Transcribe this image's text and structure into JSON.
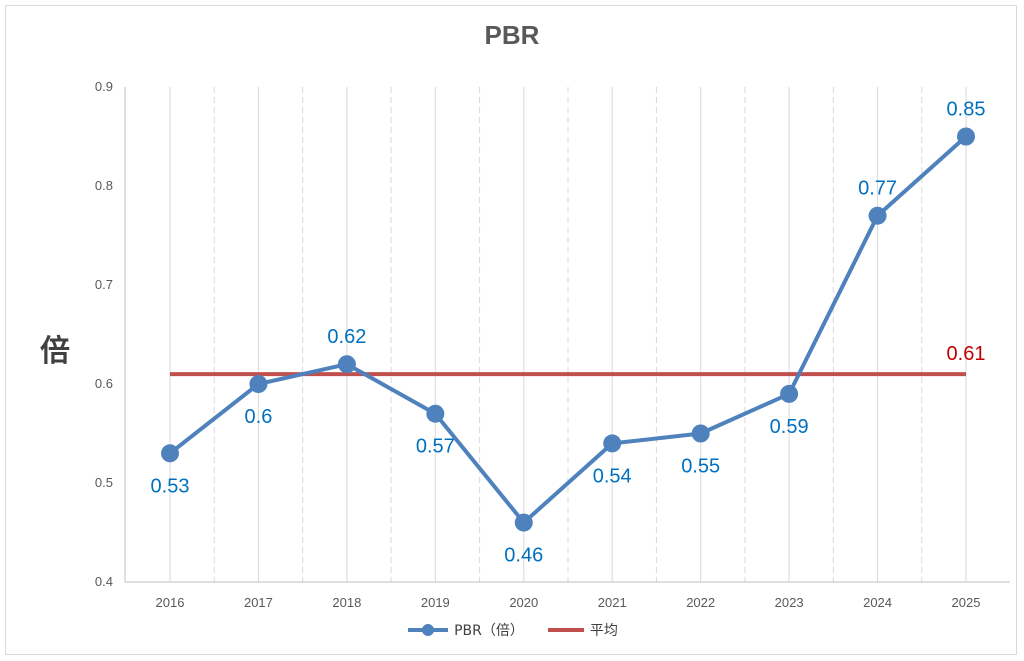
{
  "chart_data": {
    "type": "line",
    "title": "PBR",
    "ylabel": "倍",
    "xlabel": "",
    "categories": [
      "2016",
      "2017",
      "2018",
      "2019",
      "2020",
      "2021",
      "2022",
      "2023",
      "2024",
      "2025"
    ],
    "series": [
      {
        "name": "PBR（倍）",
        "color": "#4f81bd",
        "values": [
          0.53,
          0.6,
          0.62,
          0.57,
          0.46,
          0.54,
          0.55,
          0.59,
          0.77,
          0.85
        ],
        "labels": [
          "0.53",
          "0.6",
          "0.62",
          "0.57",
          "0.46",
          "0.54",
          "0.55",
          "0.59",
          "0.77",
          "0.85"
        ],
        "label_positions": [
          "below",
          "below",
          "above",
          "below",
          "below",
          "below",
          "below",
          "below",
          "above",
          "above"
        ],
        "label_color": "#0070c0"
      },
      {
        "name": "平均",
        "color": "#c0504d",
        "values": [
          0.61,
          0.61,
          0.61,
          0.61,
          0.61,
          0.61,
          0.61,
          0.61,
          0.61,
          0.61
        ],
        "end_label": "0.61",
        "label_color": "#c00000"
      }
    ],
    "ylim": [
      0.4,
      0.9
    ],
    "yticks": [
      "0.4",
      "0.5",
      "0.6",
      "0.7",
      "0.8",
      "0.9"
    ],
    "grid": "vertical",
    "legend": "bottom"
  }
}
